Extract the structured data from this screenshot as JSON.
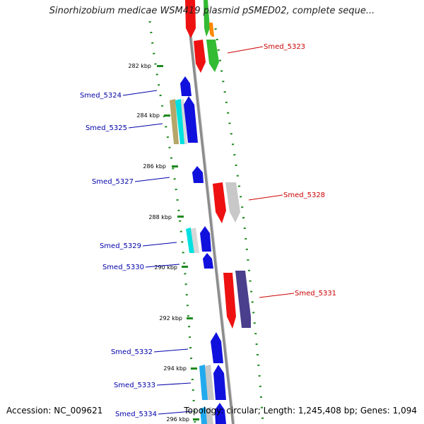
{
  "title": "Sinorhizobium medicae WSM419 plasmid pSMED02, complete seque...",
  "footer": {
    "accession_label": "Accession:",
    "accession": "NC_009621",
    "topology_label": "Topology:",
    "topology": "circular",
    "length_label": "Length:",
    "length": "1,245,408 bp",
    "genes_label": "Genes:",
    "genes": "1,094"
  },
  "colors": {
    "backbone": "#8c8c8c",
    "gc_dots": "#1f8a1f",
    "label_forward": "#cc0000",
    "label_reverse": "#0000aa"
  },
  "ticks": [
    "282 kbp",
    "284 kbp",
    "286 kbp",
    "288 kbp",
    "290 kbp",
    "292 kbp",
    "294 kbp",
    "296 kbp"
  ],
  "gene_labels": [
    {
      "name": "Smed_5323",
      "strand": "forward"
    },
    {
      "name": "Smed_5324",
      "strand": "reverse"
    },
    {
      "name": "Smed_5325",
      "strand": "reverse"
    },
    {
      "name": "Smed_5327",
      "strand": "reverse"
    },
    {
      "name": "Smed_5328",
      "strand": "forward"
    },
    {
      "name": "Smed_5329",
      "strand": "reverse"
    },
    {
      "name": "Smed_5330",
      "strand": "reverse"
    },
    {
      "name": "Smed_5331",
      "strand": "forward"
    },
    {
      "name": "Smed_5332",
      "strand": "reverse"
    },
    {
      "name": "Smed_5333",
      "strand": "reverse"
    },
    {
      "name": "Smed_5334",
      "strand": "reverse"
    }
  ]
}
